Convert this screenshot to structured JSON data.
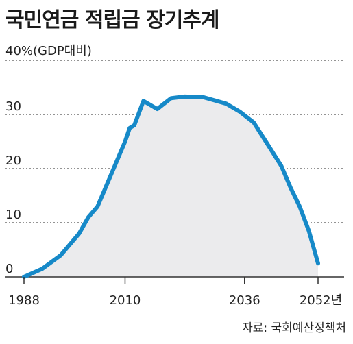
{
  "header": {
    "title": "국민연금 적립금 장기추계",
    "y_top_label": "40%(GDP대비)",
    "source": "자료: 국회예산정책처"
  },
  "colors": {
    "line": "#1689c8",
    "fill": "#ebebed",
    "grid": "#555555"
  },
  "chart_data": {
    "type": "area",
    "title": "국민연금 적립금 장기추계",
    "ylabel": "40%(GDP대비)",
    "xlabel": "",
    "ylim": [
      0,
      40
    ],
    "xlim": [
      1988,
      2052
    ],
    "grid": true,
    "y_ticks": [
      {
        "value": 0,
        "label": "0"
      },
      {
        "value": 10,
        "label": "10"
      },
      {
        "value": 20,
        "label": "20"
      },
      {
        "value": 30,
        "label": "30"
      }
    ],
    "x_ticks": [
      {
        "value": 1988,
        "label": "1988"
      },
      {
        "value": 2010,
        "label": "2010"
      },
      {
        "value": 2036,
        "label": "2036"
      },
      {
        "value": 2052,
        "label": "2052년"
      }
    ],
    "series": [
      {
        "x": [
          1988,
          1992,
          1996,
          2000,
          2002,
          2004,
          2006,
          2008,
          2010,
          2011,
          2012,
          2014,
          2017,
          2020,
          2023,
          2027,
          2032,
          2035,
          2038,
          2041,
          2044,
          2046,
          2048,
          2050,
          2052
        ],
        "values": [
          0,
          1.5,
          4,
          8,
          11,
          13,
          17,
          21,
          25,
          27.5,
          28,
          32.5,
          31,
          33,
          33.3,
          33.2,
          32,
          30.5,
          28.5,
          24.5,
          20.5,
          16.5,
          13,
          8.5,
          2.5
        ]
      }
    ]
  }
}
